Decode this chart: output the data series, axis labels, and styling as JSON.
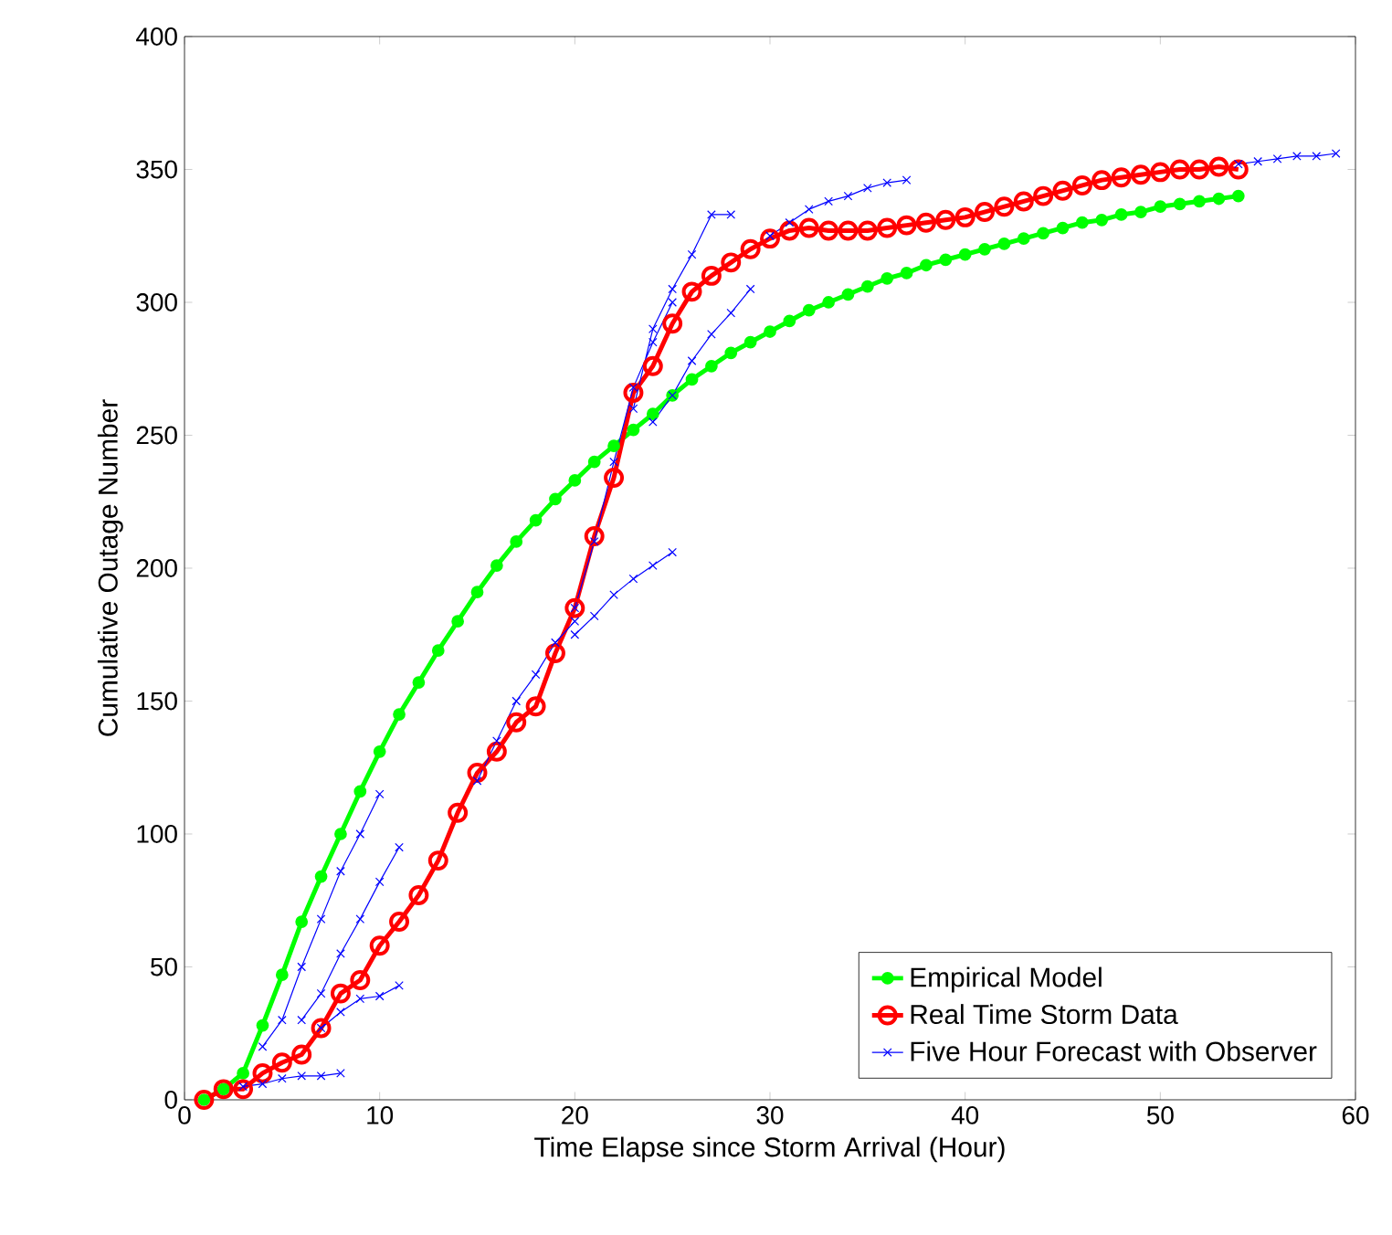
{
  "chart_data": {
    "type": "line",
    "xlabel": "Time Elapse since Storm Arrival (Hour)",
    "ylabel": "Cumulative Outage Number",
    "xlim": [
      0,
      60
    ],
    "ylim": [
      0,
      400
    ],
    "xticks": [
      0,
      10,
      20,
      30,
      40,
      50,
      60
    ],
    "yticks": [
      0,
      50,
      100,
      150,
      200,
      250,
      300,
      350,
      400
    ],
    "grid": false,
    "legend": "bottom right",
    "series": [
      {
        "name": "Empirical Model",
        "color": "#00ff00",
        "marker": "circle",
        "x": [
          1,
          2,
          3,
          4,
          5,
          6,
          7,
          8,
          9,
          10,
          11,
          12,
          13,
          14,
          15,
          16,
          17,
          18,
          19,
          20,
          21,
          22,
          23,
          24,
          25,
          26,
          27,
          28,
          29,
          30,
          31,
          32,
          33,
          34,
          35,
          36,
          37,
          38,
          39,
          40,
          41,
          42,
          43,
          44,
          45,
          46,
          47,
          48,
          49,
          50,
          51,
          52,
          53,
          54
        ],
        "values": [
          0,
          4,
          10,
          28,
          47,
          67,
          84,
          100,
          116,
          131,
          145,
          157,
          169,
          180,
          191,
          201,
          210,
          218,
          226,
          233,
          240,
          246,
          252,
          258,
          265,
          271,
          276,
          281,
          285,
          289,
          293,
          297,
          300,
          303,
          306,
          309,
          311,
          314,
          316,
          318,
          320,
          322,
          324,
          326,
          328,
          330,
          331,
          333,
          334,
          336,
          337,
          338,
          339,
          340
        ]
      },
      {
        "name": "Real Time Storm Data",
        "color": "#ff0000",
        "marker": "circle",
        "x": [
          1,
          2,
          3,
          4,
          5,
          6,
          7,
          8,
          9,
          10,
          11,
          12,
          13,
          14,
          15,
          16,
          17,
          18,
          19,
          20,
          21,
          22,
          23,
          24,
          25,
          26,
          27,
          28,
          29,
          30,
          31,
          32,
          33,
          34,
          35,
          36,
          37,
          38,
          39,
          40,
          41,
          42,
          43,
          44,
          45,
          46,
          47,
          48,
          49,
          50,
          51,
          52,
          53,
          54
        ],
        "values": [
          0,
          4,
          4,
          10,
          14,
          17,
          27,
          40,
          45,
          58,
          67,
          77,
          90,
          108,
          123,
          131,
          142,
          148,
          168,
          185,
          212,
          234,
          266,
          276,
          292,
          304,
          310,
          315,
          320,
          324,
          327,
          328,
          327,
          327,
          327,
          328,
          329,
          330,
          331,
          332,
          334,
          336,
          338,
          340,
          342,
          344,
          346,
          347,
          348,
          349,
          350,
          350,
          351,
          350
        ]
      },
      {
        "name": "Five Hour Forecast with Observer",
        "color": "#0000ff",
        "marker": "cross",
        "x": [
          3,
          4,
          5,
          6,
          7,
          8,
          null,
          4,
          5,
          6,
          7,
          8,
          9,
          10,
          null,
          6,
          7,
          8,
          9,
          10,
          11,
          null,
          7,
          8,
          9,
          10,
          11,
          null,
          15,
          16,
          17,
          18,
          19,
          20,
          null,
          20,
          21,
          22,
          23,
          24,
          25,
          null,
          20,
          21,
          22,
          23,
          24,
          25,
          null,
          23,
          24,
          25,
          26,
          27,
          28,
          null,
          24,
          25,
          26,
          27,
          28,
          29,
          null,
          30,
          31,
          32,
          33,
          34,
          35,
          36,
          37,
          null,
          54,
          55,
          56,
          57,
          58,
          59
        ],
        "values": [
          5,
          6,
          8,
          9,
          9,
          10,
          null,
          20,
          30,
          50,
          68,
          86,
          100,
          115,
          null,
          30,
          40,
          55,
          68,
          82,
          95,
          null,
          27,
          33,
          38,
          39,
          43,
          null,
          120,
          135,
          150,
          160,
          172,
          180,
          null,
          175,
          182,
          190,
          196,
          201,
          206,
          null,
          185,
          210,
          240,
          268,
          285,
          300,
          null,
          260,
          290,
          305,
          318,
          333,
          333,
          null,
          255,
          265,
          278,
          288,
          296,
          305,
          null,
          325,
          330,
          335,
          338,
          340,
          343,
          345,
          346,
          null,
          352,
          353,
          354,
          355,
          355,
          356
        ]
      }
    ]
  }
}
